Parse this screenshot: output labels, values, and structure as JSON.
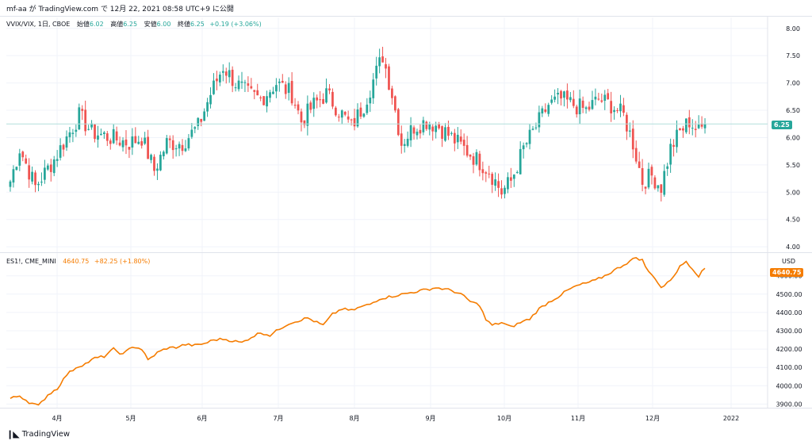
{
  "header": {
    "text": "mf-aa が TradingView.com で 12月 22, 2021 08:58 UTC+9 に公開"
  },
  "footer": {
    "brand": "TradingView",
    "logo_icon": "tradingview-logo-icon"
  },
  "colors": {
    "up": "#26a69a",
    "down": "#ef5350",
    "line": "#f57c00",
    "grid": "#f0f3fa",
    "priceline": "#b2dfdb"
  },
  "top_pane": {
    "symbol": "VVIX/VIX, 1日, CBOE",
    "open_label": "始値",
    "open": "6.02",
    "high_label": "高値",
    "high": "6.25",
    "low_label": "安値",
    "low": "6.00",
    "close_label": "終値",
    "close": "6.25",
    "change": "+0.19 (+3.06%)",
    "last_tag": "6.25"
  },
  "bottom_pane": {
    "symbol": "ES1!, CME_MINI",
    "last": "4640.75",
    "change": "+82.25 (+1.80%)",
    "last_tag": "4640.75",
    "currency": "USD"
  },
  "chart_data": [
    {
      "type": "candlestick",
      "series_name": "VVIX/VIX, 1日, CBOE",
      "ylim": [
        3.9,
        8.2
      ],
      "y_ticks": [
        "8.00",
        "7.50",
        "7.00",
        "6.50",
        "6.00",
        "5.50",
        "5.00",
        "4.50",
        "4.00"
      ],
      "y_tick_values": [
        8.0,
        7.5,
        7.0,
        6.5,
        6.0,
        5.5,
        5.0,
        4.5,
        4.0
      ],
      "x_ticks": [
        "4月",
        "5月",
        "6月",
        "7月",
        "8月",
        "9月",
        "10月",
        "11月",
        "12月",
        "2022"
      ],
      "anchors": [
        [
          0,
          5.2
        ],
        [
          3,
          5.8
        ],
        [
          8,
          5.1
        ],
        [
          14,
          5.6
        ],
        [
          18,
          6.0
        ],
        [
          22,
          6.4
        ],
        [
          26,
          6.1
        ],
        [
          32,
          6.0
        ],
        [
          38,
          5.9
        ],
        [
          42,
          6.0
        ],
        [
          46,
          5.4
        ],
        [
          50,
          5.9
        ],
        [
          55,
          5.9
        ],
        [
          60,
          6.2
        ],
        [
          64,
          6.8
        ],
        [
          68,
          7.3
        ],
        [
          72,
          7.0
        ],
        [
          76,
          6.8
        ],
        [
          80,
          6.7
        ],
        [
          85,
          7.0
        ],
        [
          90,
          6.8
        ],
        [
          93,
          6.3
        ],
        [
          97,
          6.6
        ],
        [
          101,
          6.8
        ],
        [
          105,
          6.5
        ],
        [
          109,
          6.2
        ],
        [
          113,
          6.6
        ],
        [
          117,
          7.2
        ],
        [
          119,
          7.5
        ],
        [
          122,
          6.8
        ],
        [
          125,
          5.9
        ],
        [
          129,
          6.2
        ],
        [
          133,
          6.3
        ],
        [
          137,
          6.2
        ],
        [
          141,
          6.0
        ],
        [
          145,
          5.8
        ],
        [
          149,
          5.6
        ],
        [
          153,
          5.4
        ],
        [
          157,
          5.0
        ],
        [
          160,
          5.2
        ],
        [
          164,
          5.8
        ],
        [
          168,
          6.2
        ],
        [
          172,
          6.6
        ],
        [
          176,
          6.7
        ],
        [
          180,
          6.6
        ],
        [
          184,
          6.5
        ],
        [
          188,
          6.7
        ],
        [
          192,
          6.6
        ],
        [
          196,
          6.4
        ],
        [
          199,
          5.9
        ],
        [
          202,
          5.2
        ],
        [
          205,
          5.3
        ],
        [
          208,
          5.1
        ],
        [
          211,
          5.8
        ],
        [
          214,
          6.1
        ],
        [
          217,
          6.3
        ],
        [
          220,
          6.1
        ],
        [
          222,
          6.25
        ]
      ],
      "num_bars": 223
    },
    {
      "type": "line",
      "series_name": "ES1!, CME_MINI",
      "ylim": [
        3880,
        4720
      ],
      "y_ticks": [
        "4600.00",
        "4500.00",
        "4400.00",
        "4300.00",
        "4200.00",
        "4100.00",
        "4000.00",
        "3900.00"
      ],
      "y_tick_values": [
        4600,
        4500,
        4400,
        4300,
        4200,
        4100,
        4000,
        3900
      ],
      "anchors": [
        [
          0,
          3930
        ],
        [
          3,
          3945
        ],
        [
          6,
          3910
        ],
        [
          9,
          3890
        ],
        [
          12,
          3950
        ],
        [
          15,
          3985
        ],
        [
          18,
          4060
        ],
        [
          21,
          4100
        ],
        [
          24,
          4120
        ],
        [
          27,
          4150
        ],
        [
          30,
          4160
        ],
        [
          33,
          4200
        ],
        [
          36,
          4170
        ],
        [
          39,
          4215
        ],
        [
          42,
          4200
        ],
        [
          44,
          4140
        ],
        [
          47,
          4180
        ],
        [
          50,
          4205
        ],
        [
          53,
          4210
        ],
        [
          56,
          4225
        ],
        [
          59,
          4220
        ],
        [
          62,
          4230
        ],
        [
          65,
          4250
        ],
        [
          68,
          4255
        ],
        [
          71,
          4245
        ],
        [
          74,
          4235
        ],
        [
          77,
          4265
        ],
        [
          80,
          4290
        ],
        [
          83,
          4275
        ],
        [
          86,
          4310
        ],
        [
          89,
          4340
        ],
        [
          92,
          4355
        ],
        [
          95,
          4370
        ],
        [
          98,
          4345
        ],
        [
          100,
          4330
        ],
        [
          103,
          4390
        ],
        [
          106,
          4420
        ],
        [
          109,
          4410
        ],
        [
          112,
          4430
        ],
        [
          115,
          4445
        ],
        [
          118,
          4475
        ],
        [
          121,
          4485
        ],
        [
          124,
          4495
        ],
        [
          127,
          4505
        ],
        [
          130,
          4515
        ],
        [
          133,
          4525
        ],
        [
          136,
          4535
        ],
        [
          138,
          4530
        ],
        [
          141,
          4520
        ],
        [
          144,
          4500
        ],
        [
          147,
          4460
        ],
        [
          150,
          4440
        ],
        [
          152,
          4360
        ],
        [
          154,
          4330
        ],
        [
          157,
          4345
        ],
        [
          160,
          4320
        ],
        [
          163,
          4345
        ],
        [
          166,
          4365
        ],
        [
          169,
          4420
        ],
        [
          172,
          4455
        ],
        [
          175,
          4485
        ],
        [
          178,
          4520
        ],
        [
          181,
          4545
        ],
        [
          184,
          4560
        ],
        [
          187,
          4575
        ],
        [
          190,
          4600
        ],
        [
          193,
          4630
        ],
        [
          196,
          4660
        ],
        [
          199,
          4690
        ],
        [
          200,
          4700
        ],
        [
          202,
          4685
        ],
        [
          204,
          4620
        ],
        [
          206,
          4590
        ],
        [
          208,
          4535
        ],
        [
          210,
          4560
        ],
        [
          212,
          4600
        ],
        [
          214,
          4650
        ],
        [
          216,
          4680
        ],
        [
          218,
          4640
        ],
        [
          220,
          4600
        ],
        [
          222,
          4640.75
        ]
      ],
      "num_points": 223
    }
  ]
}
